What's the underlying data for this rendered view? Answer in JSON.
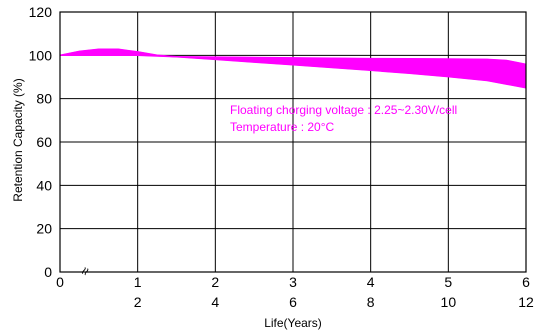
{
  "chart_data": {
    "type": "area",
    "title": "",
    "ylabel": "Retention Capacity (%)",
    "xlabel": "Life(Years)",
    "ylim": [
      0,
      120
    ],
    "xlim": [
      0,
      6
    ],
    "grid": true,
    "y_ticks": [
      "0",
      "20",
      "40",
      "60",
      "80",
      "100",
      "120"
    ],
    "x_ticks_primary": [
      "0",
      "1",
      "2",
      "3",
      "4",
      "5",
      "6"
    ],
    "x_ticks_secondary": [
      "2",
      "4",
      "6",
      "8",
      "10",
      "12"
    ],
    "axis_break_symbol": "≈",
    "band_color": "#ff00ff",
    "annotations": [
      "Floating chorging voltage : 2.25~2.30V/cell",
      "Temperature : 20°C"
    ],
    "series": [
      {
        "x": [
          0,
          0.25,
          0.5,
          0.75,
          1.0,
          1.25,
          1.5,
          2,
          2.5,
          3,
          3.5,
          4,
          4.5,
          5,
          5.5,
          5.75,
          6
        ],
        "values": [
          100,
          101.8,
          102.8,
          102.8,
          101.6,
          100,
          99.3,
          99.2,
          99.0,
          98.8,
          98.7,
          98.5,
          98.4,
          98.3,
          98.1,
          97.6,
          95.8
        ]
      },
      {
        "x": [
          0,
          0.5,
          1,
          1.5,
          2,
          2.5,
          3,
          3.5,
          4,
          4.5,
          5,
          5.5,
          6
        ],
        "values": [
          100,
          100,
          100,
          99.3,
          98.1,
          96.9,
          95.7,
          94.4,
          93.1,
          91.7,
          90.2,
          88.4,
          85.0
        ]
      }
    ]
  }
}
